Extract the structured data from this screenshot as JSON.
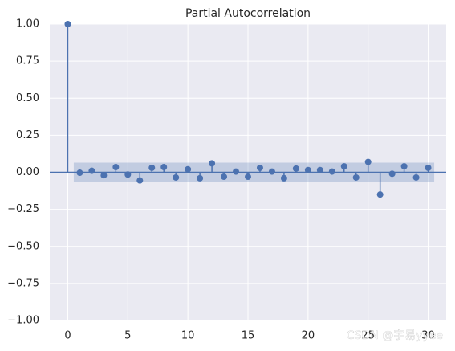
{
  "chart_data": {
    "type": "stem",
    "title": "Partial Autocorrelation",
    "x": [
      0,
      1,
      2,
      3,
      4,
      5,
      6,
      7,
      8,
      9,
      10,
      11,
      12,
      13,
      14,
      15,
      16,
      17,
      18,
      19,
      20,
      21,
      22,
      23,
      24,
      25,
      26,
      27,
      28,
      29,
      30
    ],
    "values": [
      1.0,
      -0.003,
      0.01,
      -0.02,
      0.035,
      -0.015,
      -0.055,
      0.03,
      0.035,
      -0.035,
      0.02,
      -0.04,
      0.06,
      -0.03,
      0.005,
      -0.03,
      0.03,
      0.005,
      -0.04,
      0.025,
      0.015,
      0.015,
      0.005,
      0.04,
      -0.035,
      0.07,
      -0.15,
      -0.01,
      0.04,
      -0.035,
      0.03
    ],
    "color": "#4c72b0",
    "band_x": [
      0.5,
      30.5
    ],
    "band": [
      -0.065,
      0.065
    ],
    "xlim": [
      -1.5,
      31.5
    ],
    "ylim": [
      -1.0,
      1.0
    ],
    "xticks": [
      0,
      5,
      10,
      15,
      20,
      25,
      30
    ],
    "yticks": [
      {
        "value": -1.0,
        "label": "−1.00"
      },
      {
        "value": -0.75,
        "label": "−0.75"
      },
      {
        "value": -0.5,
        "label": "−0.50"
      },
      {
        "value": -0.25,
        "label": "−0.25"
      },
      {
        "value": 0,
        "label": "0.00"
      },
      {
        "value": 0.25,
        "label": "0.25"
      },
      {
        "value": 0.5,
        "label": "0.50"
      },
      {
        "value": 0.75,
        "label": "0.75"
      },
      {
        "value": 1.0,
        "label": "1.00"
      }
    ],
    "grid": true,
    "watermark": "CSDN @宇易yyee"
  }
}
